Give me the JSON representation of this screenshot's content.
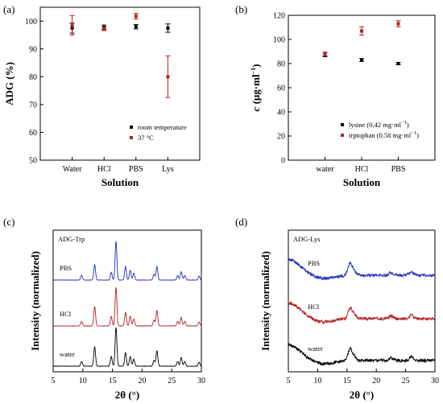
{
  "chart_data": [
    {
      "id": "a",
      "type": "scatter",
      "panel_label": "(a)",
      "xlabel": "Solution",
      "ylabel": "ADG (%)",
      "categories": [
        "Water",
        "HCl",
        "PBS",
        "Lys"
      ],
      "ylim": [
        50,
        105
      ],
      "yticks": [
        50,
        60,
        70,
        80,
        90,
        100
      ],
      "legend_position": "bottom-right",
      "series": [
        {
          "name": "room temperature",
          "color": "#000000",
          "values": [
            97.5,
            97.8,
            98.0,
            97.5
          ],
          "errors": [
            1.8,
            0.8,
            0.8,
            1.5
          ]
        },
        {
          "name": "37 °C",
          "color": "#b22222",
          "values": [
            98.5,
            97.2,
            101.8,
            80.0
          ],
          "errors": [
            3.5,
            0.6,
            1.0,
            7.5
          ]
        }
      ]
    },
    {
      "id": "b",
      "type": "scatter",
      "panel_label": "(b)",
      "xlabel": "Solution",
      "ylabel_main": "c",
      "ylabel_unit": " (μg·ml",
      "ylabel_sup": "−1",
      "ylabel_close": ")",
      "categories": [
        "water",
        "HCl",
        "PBS"
      ],
      "ylim": [
        0,
        120
      ],
      "yticks": [
        0,
        20,
        40,
        60,
        80,
        100,
        120
      ],
      "legend_position": "bottom-right",
      "series": [
        {
          "name_main": "lysine (0.42 mg·ml",
          "name_sup": "−1",
          "name_close": ")",
          "color": "#000000",
          "values": [
            87.5,
            83.0,
            80.0
          ],
          "errors": [
            1.8,
            1.2,
            1.0
          ]
        },
        {
          "name_main": "trptophan (0.58 mg·ml",
          "name_sup": "−1",
          "name_close": ")",
          "color": "#b22222",
          "values": [
            88.0,
            107.0,
            113.0
          ],
          "errors": [
            1.5,
            3.5,
            2.5
          ]
        }
      ]
    },
    {
      "id": "c",
      "type": "line",
      "panel_label": "(c)",
      "inset_label": "ADG-Trp",
      "xlabel": "2θ (°)",
      "ylabel": "Intensity (normalized)",
      "xlim": [
        5,
        30
      ],
      "xticks": [
        5,
        10,
        15,
        20,
        25,
        30
      ],
      "series": [
        {
          "name": "water",
          "color": "#000000",
          "peaks": [
            [
              9.8,
              0.12
            ],
            [
              12.0,
              0.5
            ],
            [
              14.8,
              0.25
            ],
            [
              15.6,
              1.0
            ],
            [
              17.2,
              0.35
            ],
            [
              18.0,
              0.25
            ],
            [
              18.6,
              0.18
            ],
            [
              22.0,
              0.15
            ],
            [
              22.5,
              0.4
            ],
            [
              26.0,
              0.12
            ],
            [
              26.6,
              0.22
            ],
            [
              27.2,
              0.12
            ],
            [
              29.6,
              0.1
            ]
          ]
        },
        {
          "name": "HCl",
          "color": "#b22222",
          "peaks": [
            [
              9.8,
              0.12
            ],
            [
              12.0,
              0.5
            ],
            [
              14.8,
              0.25
            ],
            [
              15.6,
              1.0
            ],
            [
              17.2,
              0.35
            ],
            [
              18.0,
              0.25
            ],
            [
              18.6,
              0.18
            ],
            [
              22.0,
              0.15
            ],
            [
              22.5,
              0.4
            ],
            [
              26.0,
              0.12
            ],
            [
              26.6,
              0.22
            ],
            [
              27.2,
              0.12
            ],
            [
              29.6,
              0.1
            ]
          ]
        },
        {
          "name": "PBS",
          "color": "#1f2fb8",
          "peaks": [
            [
              9.8,
              0.12
            ],
            [
              12.0,
              0.4
            ],
            [
              14.8,
              0.2
            ],
            [
              15.6,
              1.0
            ],
            [
              17.2,
              0.35
            ],
            [
              18.0,
              0.25
            ],
            [
              18.6,
              0.18
            ],
            [
              22.0,
              0.15
            ],
            [
              22.5,
              0.35
            ],
            [
              26.0,
              0.12
            ],
            [
              26.6,
              0.22
            ],
            [
              27.2,
              0.12
            ],
            [
              29.6,
              0.1
            ]
          ]
        }
      ]
    },
    {
      "id": "d",
      "type": "line",
      "panel_label": "(d)",
      "inset_label": "ADG-Lys",
      "xlabel": "2θ (°)",
      "ylabel": "Intensity (normalized)",
      "xlim": [
        5,
        30
      ],
      "xticks": [
        5,
        10,
        15,
        20,
        25,
        30
      ],
      "series": [
        {
          "name": "water",
          "color": "#000000",
          "peaks": [
            [
              15.5,
              0.5
            ],
            [
              16.2,
              0.2
            ],
            [
              22.5,
              0.12
            ],
            [
              26.0,
              0.18
            ]
          ]
        },
        {
          "name": "HCl",
          "color": "#b22222",
          "peaks": [
            [
              15.5,
              0.45
            ],
            [
              16.2,
              0.2
            ],
            [
              22.5,
              0.12
            ],
            [
              26.0,
              0.15
            ]
          ]
        },
        {
          "name": "PBS",
          "color": "#1f2fb8",
          "peaks": [
            [
              15.5,
              0.5
            ],
            [
              16.2,
              0.2
            ],
            [
              22.5,
              0.12
            ],
            [
              26.0,
              0.15
            ]
          ]
        }
      ]
    }
  ]
}
